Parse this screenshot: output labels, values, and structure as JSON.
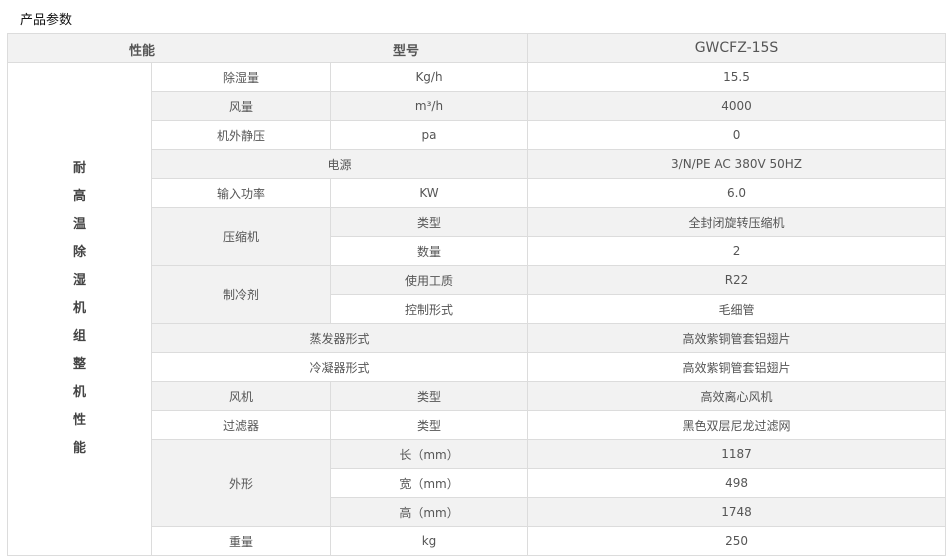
{
  "title": "产品参数",
  "header": {
    "performance": "性能",
    "model_label": "型号",
    "model": "GWCFZ-15S"
  },
  "category": [
    "耐",
    "高",
    "温",
    "除",
    "湿",
    "机",
    "组",
    "整",
    "机",
    "性",
    "能"
  ],
  "rows": {
    "dehumid": {
      "name": "除湿量",
      "unit": "Kg/h",
      "value": "15.5"
    },
    "airflow": {
      "name": "风量",
      "unit": "m³/h",
      "value": "4000"
    },
    "static": {
      "name": "机外静压",
      "unit": "pa",
      "value": "0"
    },
    "power_supply": {
      "name": "电源",
      "value": "3/N/PE AC 380V 50HZ"
    },
    "input_power": {
      "name": "输入功率",
      "unit": "KW",
      "value": "6.0"
    },
    "compressor": {
      "name": "压缩机",
      "type_label": "类型",
      "type": "全封闭旋转压缩机",
      "qty_label": "数量",
      "qty": "2"
    },
    "refrigerant": {
      "name": "制冷剂",
      "medium_label": "使用工质",
      "medium": "R22",
      "control_label": "控制形式",
      "control": "毛细管"
    },
    "evaporator": {
      "name": "蒸发器形式",
      "value": "高效紫铜管套铝翅片"
    },
    "condenser": {
      "name": "冷凝器形式",
      "value": "高效紫铜管套铝翅片"
    },
    "fan": {
      "name": "风机",
      "label": "类型",
      "value": "高效离心风机"
    },
    "filter": {
      "name": "过滤器",
      "label": "类型",
      "value": "黑色双层尼龙过滤网"
    },
    "dimensions": {
      "name": "外形",
      "length_label": "长（mm）",
      "length": "1187",
      "width_label": "宽（mm）",
      "width": "498",
      "height_label": "高（mm）",
      "height": "1748"
    },
    "weight": {
      "name": "重量",
      "unit": "kg",
      "value": "250"
    }
  }
}
